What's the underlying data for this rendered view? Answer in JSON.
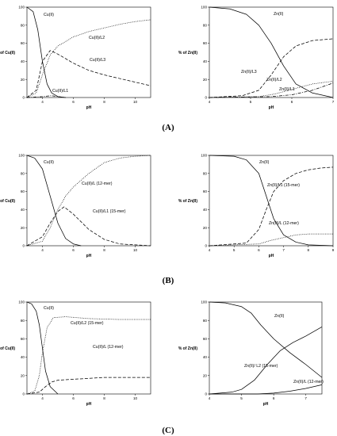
{
  "chart_data": [
    {
      "type": "line",
      "panel": "A",
      "xlabel": "pH",
      "ylabel": "% of Cu(II)",
      "xlim": [
        3,
        11
      ],
      "ylim": [
        0,
        100
      ],
      "xticks": [
        4,
        6,
        8,
        10
      ],
      "yticks": [
        0,
        20,
        40,
        60,
        80,
        100
      ],
      "series": [
        {
          "name": "Cu(II)",
          "style": "solid",
          "x": [
            3,
            3.4,
            3.7,
            4.0,
            4.3,
            4.6,
            5.0,
            5.5
          ],
          "y": [
            100,
            95,
            75,
            40,
            15,
            5,
            1,
            0
          ]
        },
        {
          "name": "Cu(II)/L2",
          "style": "dotted",
          "x": [
            3,
            3.6,
            4.0,
            4.5,
            5.0,
            6.0,
            7.0,
            8.0,
            9.0,
            10.0,
            11.0
          ],
          "y": [
            0,
            5,
            25,
            47,
            57,
            67,
            73,
            77,
            81,
            84,
            86
          ]
        },
        {
          "name": "Cu(II)/L3",
          "style": "dashed",
          "x": [
            3,
            3.6,
            4.0,
            4.5,
            5.0,
            6.0,
            7.0,
            8.0,
            9.0,
            10.0,
            11.0
          ],
          "y": [
            0,
            8,
            40,
            52,
            48,
            38,
            30,
            25,
            21,
            17,
            13
          ]
        },
        {
          "name": "Cu(II)/L1",
          "style": "dashdot",
          "x": [
            3,
            4.0,
            4.6,
            5.0,
            5.5
          ],
          "y": [
            0,
            1,
            2,
            1,
            0
          ]
        }
      ],
      "annotations": [
        "Cu(II)",
        "Cu(II)/L2",
        "Cu(II)/L3",
        "Cu(II)/L1"
      ]
    },
    {
      "type": "line",
      "panel": "A",
      "xlabel": "pH",
      "ylabel": "% of Zn(II)",
      "xlim": [
        4,
        7
      ],
      "ylim": [
        0,
        100
      ],
      "xticks": [
        4,
        5,
        6,
        7
      ],
      "yticks": [
        0,
        20,
        40,
        60,
        80,
        100
      ],
      "series": [
        {
          "name": "Zn(II)",
          "style": "solid",
          "x": [
            4,
            4.5,
            4.9,
            5.2,
            5.5,
            5.8,
            6.1,
            6.5,
            7.0
          ],
          "y": [
            100,
            98,
            92,
            80,
            60,
            35,
            15,
            5,
            0
          ]
        },
        {
          "name": "Zn(II)/L3",
          "style": "dashed",
          "x": [
            4,
            4.8,
            5.2,
            5.5,
            5.8,
            6.1,
            6.5,
            7.0
          ],
          "y": [
            0,
            2,
            8,
            25,
            45,
            57,
            63,
            65
          ]
        },
        {
          "name": "Zn(II)/L2",
          "style": "dotted",
          "x": [
            4,
            5.2,
            5.6,
            6.0,
            6.5,
            7.0
          ],
          "y": [
            0,
            1,
            4,
            9,
            15,
            18
          ]
        },
        {
          "name": "Zn(II)/L1",
          "style": "dashdot",
          "x": [
            4,
            5.5,
            6.0,
            6.5,
            7.0
          ],
          "y": [
            0,
            1,
            3,
            8,
            16
          ]
        }
      ],
      "annotations": [
        "Zn(II)",
        "Zn(II)/L3",
        "Zn(II)/L2",
        "Zn(II)/L1"
      ]
    },
    {
      "type": "line",
      "panel": "B",
      "xlabel": "pH",
      "ylabel": "% of Cu(II)",
      "xlim": [
        3,
        11
      ],
      "ylim": [
        0,
        100
      ],
      "xticks": [
        4,
        6,
        8,
        10
      ],
      "yticks": [
        0,
        20,
        40,
        60,
        80,
        100
      ],
      "series": [
        {
          "name": "Cu(II)",
          "style": "solid",
          "x": [
            3,
            3.5,
            4.0,
            4.5,
            5.0,
            5.5,
            6.0,
            6.5
          ],
          "y": [
            100,
            97,
            85,
            55,
            25,
            8,
            2,
            0
          ]
        },
        {
          "name": "Cu(II)/L (12-mer)",
          "style": "dotted",
          "x": [
            3,
            4.0,
            4.5,
            5.0,
            5.5,
            6.0,
            7.0,
            8.0,
            9.0,
            10.0,
            11.0
          ],
          "y": [
            0,
            5,
            20,
            40,
            55,
            65,
            80,
            92,
            97,
            99,
            100
          ]
        },
        {
          "name": "Cu(II)/L1 (15-mer)",
          "style": "dashed",
          "x": [
            3,
            4.0,
            4.5,
            5.0,
            5.4,
            6.0,
            7.0,
            8.0,
            9.0,
            10.0,
            11.0
          ],
          "y": [
            0,
            10,
            25,
            38,
            43,
            35,
            18,
            7,
            2,
            1,
            0
          ]
        }
      ],
      "annotations": [
        "Cu(II)",
        "Cu(II)/L (12-mer)",
        "Cu(II)/L1 (15-mer)"
      ]
    },
    {
      "type": "line",
      "panel": "B",
      "xlabel": "pH",
      "ylabel": "% of Zn(II)",
      "xlim": [
        4,
        9
      ],
      "ylim": [
        0,
        100
      ],
      "xticks": [
        4,
        5,
        6,
        7,
        8,
        9
      ],
      "yticks": [
        0,
        20,
        40,
        60,
        80,
        100
      ],
      "series": [
        {
          "name": "Zn(II)",
          "style": "solid",
          "x": [
            4,
            5.0,
            5.5,
            6.0,
            6.3,
            6.6,
            7.0,
            7.5,
            8.0,
            9.0
          ],
          "y": [
            100,
            99,
            95,
            80,
            55,
            30,
            12,
            4,
            1,
            0
          ]
        },
        {
          "name": "Zn(II)/L1 (15-mer)",
          "style": "dashed",
          "x": [
            4,
            5.5,
            6.0,
            6.3,
            6.6,
            7.0,
            7.5,
            8.0,
            8.5,
            9.0
          ],
          "y": [
            0,
            3,
            18,
            40,
            60,
            72,
            80,
            84,
            86,
            87
          ]
        },
        {
          "name": "Zn(II)/L (12-mer)",
          "style": "dotted",
          "x": [
            4,
            6.0,
            6.5,
            7.0,
            7.5,
            8.0,
            9.0
          ],
          "y": [
            0,
            2,
            6,
            9,
            12,
            13,
            13
          ]
        }
      ],
      "annotations": [
        "Zn(II)",
        "Zn(II)/L1 (15-mer)",
        "Zn(II)/L (12-mer)"
      ]
    },
    {
      "type": "line",
      "panel": "C",
      "xlabel": "pH",
      "ylabel": "% of Cu(II)",
      "xlim": [
        3,
        11
      ],
      "ylim": [
        0,
        100
      ],
      "xticks": [
        4,
        6,
        8,
        10
      ],
      "yticks": [
        0,
        20,
        40,
        60,
        80,
        100
      ],
      "series": [
        {
          "name": "Cu(II)",
          "style": "solid",
          "x": [
            3,
            3.3,
            3.6,
            3.8,
            4.0,
            4.2,
            4.5,
            5.0
          ],
          "y": [
            100,
            98,
            90,
            75,
            50,
            25,
            8,
            0
          ]
        },
        {
          "name": "Cu(II)/L2 (15-mer)",
          "style": "dotted",
          "x": [
            3,
            3.5,
            3.8,
            4.0,
            4.3,
            4.7,
            5.5,
            7.0,
            9.0,
            11.0
          ],
          "y": [
            0,
            3,
            20,
            45,
            72,
            83,
            84,
            82,
            81,
            81
          ]
        },
        {
          "name": "Cu(II)/L (12-mer)",
          "style": "dashed",
          "x": [
            3,
            3.8,
            4.2,
            4.6,
            5.0,
            6.0,
            7.0,
            8.0,
            9.0,
            10.0,
            11.0
          ],
          "y": [
            0,
            2,
            8,
            13,
            15,
            16,
            17,
            18,
            18,
            18,
            18
          ]
        }
      ],
      "annotations": [
        "Cu(II)",
        "Cu(II)/L2 (15-mer)",
        "Cu(II)/L (12-mer)"
      ]
    },
    {
      "type": "line",
      "panel": "C",
      "xlabel": "pH",
      "ylabel": "% of Zn(II)",
      "xlim": [
        4,
        7.5
      ],
      "ylim": [
        0,
        100
      ],
      "xticks": [
        4,
        5,
        6,
        7
      ],
      "yticks": [
        0,
        20,
        40,
        60,
        80,
        100
      ],
      "series": [
        {
          "name": "Zn(II)",
          "style": "solid",
          "x": [
            4,
            4.5,
            5.0,
            5.3,
            5.6,
            6.0,
            6.5,
            7.0,
            7.5
          ],
          "y": [
            100,
            99,
            95,
            88,
            75,
            60,
            45,
            32,
            18
          ]
        },
        {
          "name": "Zn(II)/ L2 (15-mer)",
          "style": "solid",
          "x": [
            4,
            4.7,
            5.0,
            5.4,
            5.8,
            6.2,
            6.6,
            7.0,
            7.5
          ],
          "y": [
            0,
            2,
            5,
            15,
            32,
            47,
            56,
            63,
            73
          ]
        },
        {
          "name": "Zn(II)/L (12-mer)",
          "style": "solid",
          "x": [
            4,
            5.5,
            6.0,
            6.5,
            7.0,
            7.5
          ],
          "y": [
            0,
            0,
            1,
            3,
            6,
            10
          ]
        }
      ],
      "annotations": [
        "Zn(II)",
        "Zn(II)/ L2 (15-mer)",
        "Zn(II)/L (12-mer)"
      ]
    }
  ],
  "panel_labels": [
    "(A)",
    "(B)",
    "(C)"
  ]
}
